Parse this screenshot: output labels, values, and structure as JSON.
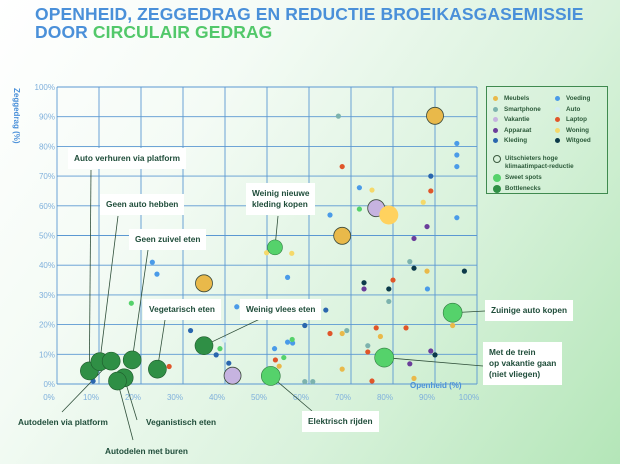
{
  "title": {
    "line1": "OPENHEID, ZEGGEDRAG EN REDUCTIE BROEIKASGASEMISSIE",
    "line2_prefix": "DOOR ",
    "line2_highlight": "CIRCULAIR GEDRAG"
  },
  "chart_data": {
    "type": "scatter",
    "title": "OPENHEID, ZEGGEDRAG EN REDUCTIE BROEIKASGASEMISSIE DOOR CIRCULAIR GEDRAG",
    "xlabel": "Openheid (%)",
    "ylabel": "Zeggedrag (%)",
    "xlim": [
      0,
      100
    ],
    "ylim": [
      0,
      100
    ],
    "grid": true,
    "x_ticks": [
      "0%",
      "10%",
      "20%",
      "30%",
      "40%",
      "50%",
      "60%",
      "70%",
      "80%",
      "90%",
      "100%"
    ],
    "y_ticks": [
      "0%",
      "10%",
      "20%",
      "30%",
      "40%",
      "50%",
      "60%",
      "70%",
      "80%",
      "90%",
      "100%"
    ],
    "legend_position": "right",
    "categories": [
      {
        "name": "Meubels",
        "color": "#e9b94a"
      },
      {
        "name": "Smartphone",
        "color": "#7db3ae"
      },
      {
        "name": "Vakantie",
        "color": "#c6b3e0"
      },
      {
        "name": "Apparaat",
        "color": "#6a3d9a"
      },
      {
        "name": "Kleding",
        "color": "#2a66ae"
      },
      {
        "name": "Voeding",
        "color": "#4a9be8"
      },
      {
        "name": "Auto",
        "color": "#d3edf3"
      },
      {
        "name": "Laptop",
        "color": "#e0562a"
      },
      {
        "name": "Woning",
        "color": "#f5d96a"
      },
      {
        "name": "Witgoed",
        "color": "#0c3a4a"
      }
    ],
    "legend_extra": [
      {
        "name": "Uitschieters hoge klimaatimpact-reductie",
        "kind": "outlier"
      },
      {
        "name": "Sweet spots",
        "kind": "sweet",
        "color": "#55d26b"
      },
      {
        "name": "Bottlenecks",
        "kind": "bottleneck",
        "color": "#2f8f45"
      }
    ],
    "points": [
      {
        "x": 22.7,
        "y": 41,
        "cat": "Voeding"
      },
      {
        "x": 23.8,
        "y": 37,
        "cat": "Voeding"
      },
      {
        "x": 17.7,
        "y": 27.2,
        "cat": "Sweet spots"
      },
      {
        "x": 49.9,
        "y": 44.2,
        "cat": "Woning"
      },
      {
        "x": 42.8,
        "y": 26,
        "cat": "Voeding"
      },
      {
        "x": 67,
        "y": 90.2,
        "cat": "Smartphone"
      },
      {
        "x": 95.2,
        "y": 81,
        "cat": "Voeding"
      },
      {
        "x": 95.2,
        "y": 77.1,
        "cat": "Voeding"
      },
      {
        "x": 95.2,
        "y": 73.2,
        "cat": "Voeding"
      },
      {
        "x": 67.9,
        "y": 73.2,
        "cat": "Laptop"
      },
      {
        "x": 89,
        "y": 70,
        "cat": "Kleding"
      },
      {
        "x": 72,
        "y": 66.1,
        "cat": "Voeding"
      },
      {
        "x": 75,
        "y": 65.3,
        "cat": "Woning"
      },
      {
        "x": 89,
        "y": 65,
        "cat": "Laptop"
      },
      {
        "x": 87.2,
        "y": 61.2,
        "cat": "Woning"
      },
      {
        "x": 72,
        "y": 58.9,
        "cat": "Sweet spots"
      },
      {
        "x": 65,
        "y": 56.9,
        "cat": "Voeding"
      },
      {
        "x": 95.2,
        "y": 56,
        "cat": "Voeding"
      },
      {
        "x": 88.1,
        "y": 53,
        "cat": "Apparaat"
      },
      {
        "x": 85,
        "y": 49,
        "cat": "Apparaat"
      },
      {
        "x": 55.9,
        "y": 44,
        "cat": "Woning"
      },
      {
        "x": 84,
        "y": 41.2,
        "cat": "Smartphone"
      },
      {
        "x": 85,
        "y": 39,
        "cat": "Witgoed"
      },
      {
        "x": 88.1,
        "y": 38,
        "cat": "Meubels"
      },
      {
        "x": 97,
        "y": 38,
        "cat": "Witgoed"
      },
      {
        "x": 54.9,
        "y": 35.9,
        "cat": "Voeding"
      },
      {
        "x": 73.1,
        "y": 34.1,
        "cat": "Witgoed"
      },
      {
        "x": 73.1,
        "y": 32,
        "cat": "Apparaat"
      },
      {
        "x": 80,
        "y": 35,
        "cat": "Laptop"
      },
      {
        "x": 79,
        "y": 32,
        "cat": "Witgoed"
      },
      {
        "x": 88.2,
        "y": 32,
        "cat": "Voeding"
      },
      {
        "x": 79,
        "y": 27.8,
        "cat": "Smartphone"
      },
      {
        "x": 64,
        "y": 24.9,
        "cat": "Kleding"
      },
      {
        "x": 59,
        "y": 19.7,
        "cat": "Kleding"
      },
      {
        "x": 65,
        "y": 17,
        "cat": "Laptop"
      },
      {
        "x": 67.9,
        "y": 17,
        "cat": "Meubels"
      },
      {
        "x": 69,
        "y": 18,
        "cat": "Smartphone"
      },
      {
        "x": 76,
        "y": 18.9,
        "cat": "Laptop"
      },
      {
        "x": 77,
        "y": 16,
        "cat": "Meubels"
      },
      {
        "x": 83.1,
        "y": 18.9,
        "cat": "Laptop"
      },
      {
        "x": 94.2,
        "y": 19.7,
        "cat": "Meubels"
      },
      {
        "x": 54.9,
        "y": 14.1,
        "cat": "Voeding"
      },
      {
        "x": 56.1,
        "y": 13.8,
        "cat": "Voeding"
      },
      {
        "x": 56,
        "y": 15,
        "cat": "Sweet spots"
      },
      {
        "x": 51.8,
        "y": 11.9,
        "cat": "Voeding"
      },
      {
        "x": 74,
        "y": 12.9,
        "cat": "Smartphone"
      },
      {
        "x": 74,
        "y": 10.8,
        "cat": "Laptop"
      },
      {
        "x": 89,
        "y": 11.1,
        "cat": "Apparaat"
      },
      {
        "x": 90,
        "y": 9.8,
        "cat": "Witgoed"
      },
      {
        "x": 84,
        "y": 6.8,
        "cat": "Apparaat"
      },
      {
        "x": 52,
        "y": 8.1,
        "cat": "Laptop"
      },
      {
        "x": 54,
        "y": 8.9,
        "cat": "Sweet spots"
      },
      {
        "x": 52.9,
        "y": 6,
        "cat": "Meubels"
      },
      {
        "x": 67.9,
        "y": 5,
        "cat": "Meubels"
      },
      {
        "x": 85,
        "y": 1.9,
        "cat": "Meubels"
      },
      {
        "x": 75,
        "y": 1,
        "cat": "Laptop"
      },
      {
        "x": 59,
        "y": 0.8,
        "cat": "Smartphone"
      },
      {
        "x": 60.9,
        "y": 0.8,
        "cat": "Smartphone"
      },
      {
        "x": 31.8,
        "y": 18,
        "cat": "Kleding"
      },
      {
        "x": 38.8,
        "y": 11.9,
        "cat": "Sweet spots"
      },
      {
        "x": 39.8,
        "y": 14.8,
        "cat": "Auto"
      },
      {
        "x": 37.9,
        "y": 9.8,
        "cat": "Kleding"
      },
      {
        "x": 40.9,
        "y": 7,
        "cat": "Kleding"
      },
      {
        "x": 26.7,
        "y": 5.9,
        "cat": "Laptop"
      },
      {
        "x": 8.6,
        "y": 1,
        "cat": "Kleding"
      }
    ],
    "outliers": [
      {
        "x": 90,
        "y": 90.3,
        "cat": "Meubels"
      },
      {
        "x": 67.9,
        "y": 49.9,
        "cat": "Meubels"
      },
      {
        "x": 35,
        "y": 33.9,
        "cat": "Meubels"
      },
      {
        "x": 76,
        "y": 59.2,
        "cat": "Vakantie"
      },
      {
        "x": 41.8,
        "y": 2.8,
        "cat": "Vakantie"
      },
      {
        "x": 79,
        "y": 56.9,
        "cat": "Woning"
      }
    ],
    "sweet_spots": [
      {
        "label": "Weinig nieuwe kleding kopen",
        "x": 51.9,
        "y": 46
      },
      {
        "label": "Zuinige auto kopen",
        "x": 94.2,
        "y": 24
      },
      {
        "label": "Met de trein op vakantie gaan (niet vliegen)",
        "x": 77.9,
        "y": 8.9
      },
      {
        "label": "Elektrisch rijden",
        "x": 50.9,
        "y": 2.7
      }
    ],
    "bottlenecks": [
      {
        "label": "Auto verhuren via platform",
        "x": 7.7,
        "y": 4.4
      },
      {
        "label": "Geen auto hebben",
        "x": 10.2,
        "y": 7.5
      },
      {
        "label": "Autodelen via platform",
        "x": 12.9,
        "y": 7.7
      },
      {
        "label": "Geen zuivel eten",
        "x": 17.9,
        "y": 8.1
      },
      {
        "label": "Veganistisch eten",
        "x": 16,
        "y": 2.1
      },
      {
        "label": "Autodelen met buren",
        "x": 14.4,
        "y": 1
      },
      {
        "label": "Vegetarisch eten",
        "x": 23.9,
        "y": 5
      },
      {
        "label": "Weinig vlees eten",
        "x": 35,
        "y": 12.9
      }
    ]
  },
  "callouts": {
    "auto_verhuren": "Auto verhuren via platform",
    "geen_auto": "Geen auto hebben",
    "geen_zuivel": "Geen zuivel eten",
    "vegetarisch": "Vegetarisch eten",
    "weinig_vlees": "Weinig vlees eten",
    "weinig_kleding_1": "Weinig nieuwe",
    "weinig_kleding_2": "kleding kopen",
    "zuinige_auto": "Zuinige auto kopen",
    "trein_1": "Met de trein",
    "trein_2": "op vakantie gaan",
    "trein_3": "(niet vliegen)",
    "elektrisch": "Elektrisch rijden",
    "autodelen_platform": "Autodelen via platform",
    "veganistisch": "Veganistisch eten",
    "autodelen_buren": "Autodelen met buren"
  }
}
